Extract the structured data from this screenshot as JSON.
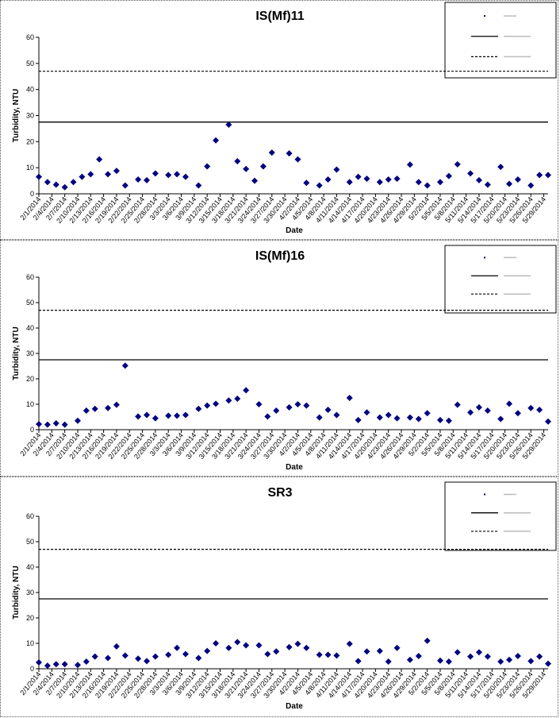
{
  "chart_data": [
    {
      "type": "scatter",
      "title": "IS(Mf)11",
      "xlabel": "Date",
      "ylabel": "Turbidity, NTU",
      "ylim": [
        0,
        60
      ],
      "yticks": [
        0,
        10,
        20,
        30,
        40,
        50,
        60
      ],
      "xticks": [
        "2/1/2014",
        "2/4/2014",
        "2/7/2014",
        "2/10/2014",
        "2/13/2014",
        "2/16/2014",
        "2/19/2014",
        "2/22/2014",
        "2/25/2014",
        "2/28/2014",
        "3/3/2014",
        "3/6/2014",
        "3/9/2014",
        "3/12/2014",
        "3/15/2014",
        "3/18/2014",
        "3/21/2014",
        "3/24/2014",
        "3/27/2014",
        "3/30/2014",
        "4/2/2014",
        "4/5/2014",
        "4/8/2014",
        "4/11/2014",
        "4/14/2014",
        "4/17/2014",
        "4/20/2014",
        "4/23/2014",
        "4/26/2014",
        "4/29/2014",
        "5/2/2014",
        "5/5/2014",
        "5/8/2014",
        "5/11/2014",
        "5/14/2014",
        "5/17/2014",
        "5/20/2014",
        "5/23/2014",
        "5/26/2014",
        "5/29/2014"
      ],
      "grid": false,
      "legend_position": "top-right",
      "series": [
        {
          "type": "scatter",
          "marker": "diamond",
          "color": "#000080",
          "x": [
            "2/1/2014",
            "2/3/2014",
            "2/5/2014",
            "2/7/2014",
            "2/9/2014",
            "2/11/2014",
            "2/13/2014",
            "2/15/2014",
            "2/17/2014",
            "2/19/2014",
            "2/21/2014",
            "2/24/2014",
            "2/26/2014",
            "2/28/2014",
            "3/3/2014",
            "3/5/2014",
            "3/7/2014",
            "3/10/2014",
            "3/12/2014",
            "3/14/2014",
            "3/17/2014",
            "3/19/2014",
            "3/21/2014",
            "3/23/2014",
            "3/25/2014",
            "3/27/2014",
            "3/31/2014",
            "4/2/2014",
            "4/4/2014",
            "4/7/2014",
            "4/9/2014",
            "4/11/2014",
            "4/14/2014",
            "4/16/2014",
            "4/18/2014",
            "4/21/2014",
            "4/23/2014",
            "4/25/2014",
            "4/28/2014",
            "4/30/2014",
            "5/2/2014",
            "5/5/2014",
            "5/7/2014",
            "5/9/2014",
            "5/12/2014",
            "5/14/2014",
            "5/16/2014",
            "5/19/2014",
            "5/21/2014",
            "5/23/2014",
            "5/26/2014",
            "5/28/2014",
            "5/30/2014"
          ],
          "y": [
            6.5,
            4.5,
            3.5,
            2.5,
            4.5,
            6.5,
            7.5,
            13.2,
            7.5,
            8.8,
            3.2,
            5.5,
            5.2,
            7.8,
            7.2,
            7.5,
            6.5,
            3.2,
            10.5,
            20.5,
            26.5,
            12.5,
            9.5,
            5.0,
            10.5,
            15.8,
            15.5,
            13.2,
            4.2,
            3.2,
            5.5,
            9.3,
            4.5,
            6.5,
            5.8,
            4.5,
            5.5,
            5.8,
            11.2,
            4.5,
            3.2,
            4.5,
            6.8,
            11.3,
            7.8,
            5.2,
            3.5,
            10.3,
            3.8,
            5.5,
            3.2,
            7.2,
            7.2
          ]
        }
      ],
      "reference_lines": [
        {
          "y": 27.5,
          "style": "solid"
        },
        {
          "y": 47,
          "style": "dashed"
        }
      ]
    },
    {
      "type": "scatter",
      "title": "IS(Mf)16",
      "xlabel": "Date",
      "ylabel": "Turbidity, NTU",
      "ylim": [
        0,
        60
      ],
      "yticks": [
        0,
        10,
        20,
        30,
        40,
        50,
        60
      ],
      "xticks": [
        "2/1/2014",
        "2/4/2014",
        "2/7/2014",
        "2/10/2014",
        "2/13/2014",
        "2/16/2014",
        "2/19/2014",
        "2/22/2014",
        "2/25/2014",
        "2/28/2014",
        "3/3/2014",
        "3/6/2014",
        "3/9/2014",
        "3/12/2014",
        "3/15/2014",
        "3/18/2014",
        "3/21/2014",
        "3/24/2014",
        "3/27/2014",
        "3/30/2014",
        "4/2/2014",
        "4/5/2014",
        "4/8/2014",
        "4/11/2014",
        "4/14/2014",
        "4/17/2014",
        "4/20/2014",
        "4/23/2014",
        "4/26/2014",
        "4/29/2014",
        "5/2/2014",
        "5/5/2014",
        "5/8/2014",
        "5/11/2014",
        "5/14/2014",
        "5/17/2014",
        "5/20/2014",
        "5/23/2014",
        "5/26/2014",
        "5/29/2014"
      ],
      "grid": false,
      "legend_position": "top-right",
      "series": [
        {
          "type": "scatter",
          "marker": "diamond",
          "color": "#000080",
          "x": [
            "2/1/2014",
            "2/3/2014",
            "2/5/2014",
            "2/7/2014",
            "2/10/2014",
            "2/12/2014",
            "2/14/2014",
            "2/17/2014",
            "2/19/2014",
            "2/21/2014",
            "2/24/2014",
            "2/26/2014",
            "2/28/2014",
            "3/3/2014",
            "3/5/2014",
            "3/7/2014",
            "3/10/2014",
            "3/12/2014",
            "3/14/2014",
            "3/17/2014",
            "3/19/2014",
            "3/21/2014",
            "3/24/2014",
            "3/26/2014",
            "3/28/2014",
            "3/31/2014",
            "4/2/2014",
            "4/4/2014",
            "4/7/2014",
            "4/9/2014",
            "4/11/2014",
            "4/14/2014",
            "4/16/2014",
            "4/18/2014",
            "4/21/2014",
            "4/23/2014",
            "4/25/2014",
            "4/28/2014",
            "4/30/2014",
            "5/2/2014",
            "5/5/2014",
            "5/7/2014",
            "5/9/2014",
            "5/12/2014",
            "5/14/2014",
            "5/16/2014",
            "5/19/2014",
            "5/21/2014",
            "5/23/2014",
            "5/26/2014",
            "5/28/2014",
            "5/30/2014"
          ],
          "y": [
            2.2,
            2.0,
            2.5,
            2.0,
            3.5,
            7.5,
            8.2,
            8.5,
            9.8,
            25.2,
            5.2,
            5.8,
            4.5,
            5.5,
            5.5,
            5.8,
            8.2,
            9.5,
            10.2,
            11.5,
            12.2,
            15.5,
            10.0,
            5.2,
            7.5,
            8.8,
            10.0,
            9.5,
            4.8,
            7.8,
            5.8,
            12.5,
            3.8,
            6.8,
            4.8,
            5.8,
            4.5,
            4.8,
            4.2,
            6.5,
            3.8,
            3.5,
            9.8,
            6.8,
            8.8,
            7.5,
            4.2,
            10.2,
            6.5,
            8.5,
            7.8,
            3.2
          ]
        }
      ],
      "reference_lines": [
        {
          "y": 27.5,
          "style": "solid"
        },
        {
          "y": 47,
          "style": "dashed"
        }
      ]
    },
    {
      "type": "scatter",
      "title": "SR3",
      "xlabel": "Date",
      "ylabel": "Turbidity, NTU",
      "ylim": [
        0,
        60
      ],
      "yticks": [
        0,
        10,
        20,
        30,
        40,
        50,
        60
      ],
      "xticks": [
        "2/1/2014",
        "2/4/2014",
        "2/7/2014",
        "2/10/2014",
        "2/13/2014",
        "2/16/2014",
        "2/19/2014",
        "2/22/2014",
        "2/25/2014",
        "2/28/2014",
        "3/3/2014",
        "3/6/2014",
        "3/9/2014",
        "3/12/2014",
        "3/15/2014",
        "3/18/2014",
        "3/21/2014",
        "3/24/2014",
        "3/27/2014",
        "3/30/2014",
        "4/2/2014",
        "4/5/2014",
        "4/8/2014",
        "4/11/2014",
        "4/14/2014",
        "4/17/2014",
        "4/20/2014",
        "4/23/2014",
        "4/26/2014",
        "4/29/2014",
        "5/2/2014",
        "5/5/2014",
        "5/8/2014",
        "5/11/2014",
        "5/14/2014",
        "5/17/2014",
        "5/20/2014",
        "5/23/2014",
        "5/26/2014",
        "5/29/2014"
      ],
      "grid": false,
      "legend_position": "top-right",
      "series": [
        {
          "type": "scatter",
          "marker": "diamond",
          "color": "#000080",
          "x": [
            "2/1/2014",
            "2/3/2014",
            "2/5/2014",
            "2/7/2014",
            "2/10/2014",
            "2/12/2014",
            "2/14/2014",
            "2/17/2014",
            "2/19/2014",
            "2/21/2014",
            "2/24/2014",
            "2/26/2014",
            "2/28/2014",
            "3/3/2014",
            "3/5/2014",
            "3/7/2014",
            "3/10/2014",
            "3/12/2014",
            "3/14/2014",
            "3/17/2014",
            "3/19/2014",
            "3/21/2014",
            "3/24/2014",
            "3/26/2014",
            "3/28/2014",
            "3/31/2014",
            "4/2/2014",
            "4/4/2014",
            "4/7/2014",
            "4/9/2014",
            "4/11/2014",
            "4/14/2014",
            "4/16/2014",
            "4/18/2014",
            "4/21/2014",
            "4/23/2014",
            "4/25/2014",
            "4/28/2014",
            "4/30/2014",
            "5/2/2014",
            "5/5/2014",
            "5/7/2014",
            "5/9/2014",
            "5/12/2014",
            "5/14/2014",
            "5/16/2014",
            "5/19/2014",
            "5/21/2014",
            "5/23/2014",
            "5/26/2014",
            "5/28/2014",
            "5/30/2014"
          ],
          "y": [
            2.5,
            1.2,
            1.8,
            1.8,
            1.5,
            2.8,
            4.8,
            4.2,
            8.8,
            5.2,
            4.0,
            3.0,
            4.8,
            5.5,
            8.2,
            5.8,
            4.2,
            7.0,
            10.0,
            8.2,
            10.5,
            9.2,
            9.2,
            5.8,
            6.8,
            8.5,
            9.8,
            8.2,
            5.5,
            5.5,
            5.2,
            9.8,
            3.0,
            6.8,
            7.0,
            2.8,
            8.2,
            3.5,
            5.0,
            11.0,
            3.2,
            2.8,
            6.5,
            4.8,
            6.5,
            4.8,
            2.8,
            3.5,
            5.0,
            3.0,
            4.8,
            2.0
          ]
        }
      ],
      "reference_lines": [
        {
          "y": 27.5,
          "style": "solid"
        },
        {
          "y": 47,
          "style": "dashed"
        }
      ]
    }
  ]
}
